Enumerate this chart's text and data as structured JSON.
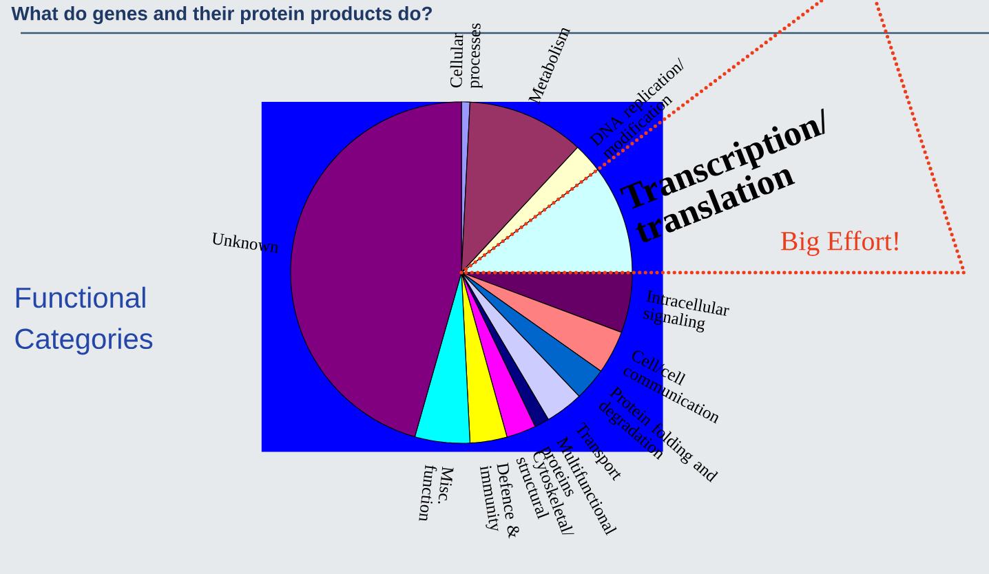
{
  "chart_data": {
    "type": "pie",
    "title": "What do genes and their protein products do?",
    "subtitle": "Functional Categories",
    "categories": [
      "Cellular processes",
      "Metabolism",
      "DNA replication/modification",
      "Transcription/translation",
      "Intracellular signaling",
      "Cell/cell communication",
      "Protein folding and degradation",
      "Transport",
      "Multifunctional proteins",
      "Cytoskeletal/structural",
      "Defence & immunity",
      "Misc. function",
      "Unknown"
    ],
    "values": [
      0.8,
      11.1,
      2.8,
      10.3,
      5.7,
      4.1,
      3.1,
      3.6,
      1.4,
      2.8,
      3.5,
      5.2,
      45.6
    ],
    "colors": [
      "#9999ff",
      "#993366",
      "#ffffcc",
      "#ccffff",
      "#660066",
      "#ff8080",
      "#0066cc",
      "#ccccff",
      "#000080",
      "#ff00ff",
      "#ffff00",
      "#00ffff",
      "#800080"
    ],
    "annotations": [
      {
        "text": "Big Effort!",
        "x": "Transcription/translation"
      }
    ]
  }
}
